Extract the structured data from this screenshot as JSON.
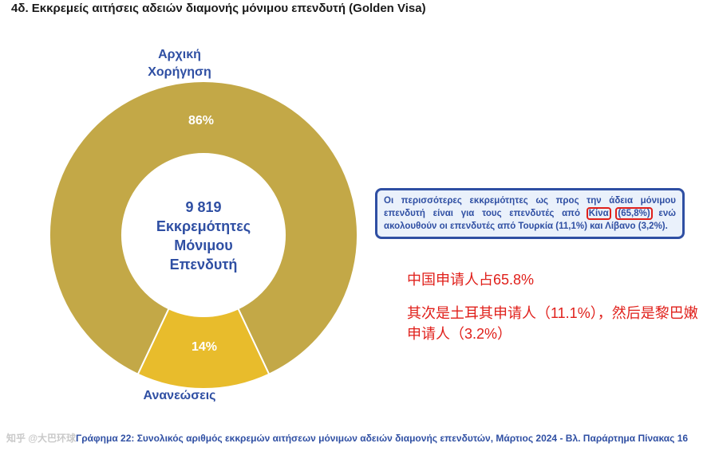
{
  "title": "4δ. Εκκρεμείς αιτήσεις αδειών διαμονής μόνιμου επενδυτή (Golden Visa)",
  "chart_data": {
    "type": "pie",
    "variant": "donut",
    "categories": [
      "Αρχική Χορήγηση",
      "Ανανεώσεις"
    ],
    "values": [
      86,
      14
    ],
    "value_labels": [
      "86%",
      "14%"
    ],
    "colors": [
      "#c3a847",
      "#e8bc2c"
    ],
    "center_label": [
      "9 819",
      "Εκκρεμότητες",
      "Μόνιμου",
      "Επενδυτή"
    ]
  },
  "labels": {
    "initial_line1": "Αρχική",
    "initial_line2": "Χορήγηση",
    "renewals": "Ανανεώσεις"
  },
  "callout": {
    "text_before": "Οι περισσότερες εκκρεμότητες ως προς την άδεια μόνιμου επενδυτή είναι για τους επενδυτές από ",
    "highlight_1": "Κίνα",
    "highlight_2": "(65,8%)",
    "text_after": " ενώ ακολουθούν οι επενδυτές από Τουρκία (11,1%) και Λίβανο (3,2%)."
  },
  "annotation": {
    "line1": "中国申请人占65.8%",
    "line2": "其次是土耳其申请人（11.1%），然后是黎巴嫩申请人（3.2%）"
  },
  "footer": {
    "watermark": "知乎 @大巴环球",
    "prefix": "Γράφημα 22: ",
    "text": "Συνολικός αριθμός εκκρεμών αιτήσεων μόνιμων αδειών διαμονής επενδυτών, Μάρτιος 2024 - Βλ. Παράρτημα  Πίνακας 16"
  }
}
